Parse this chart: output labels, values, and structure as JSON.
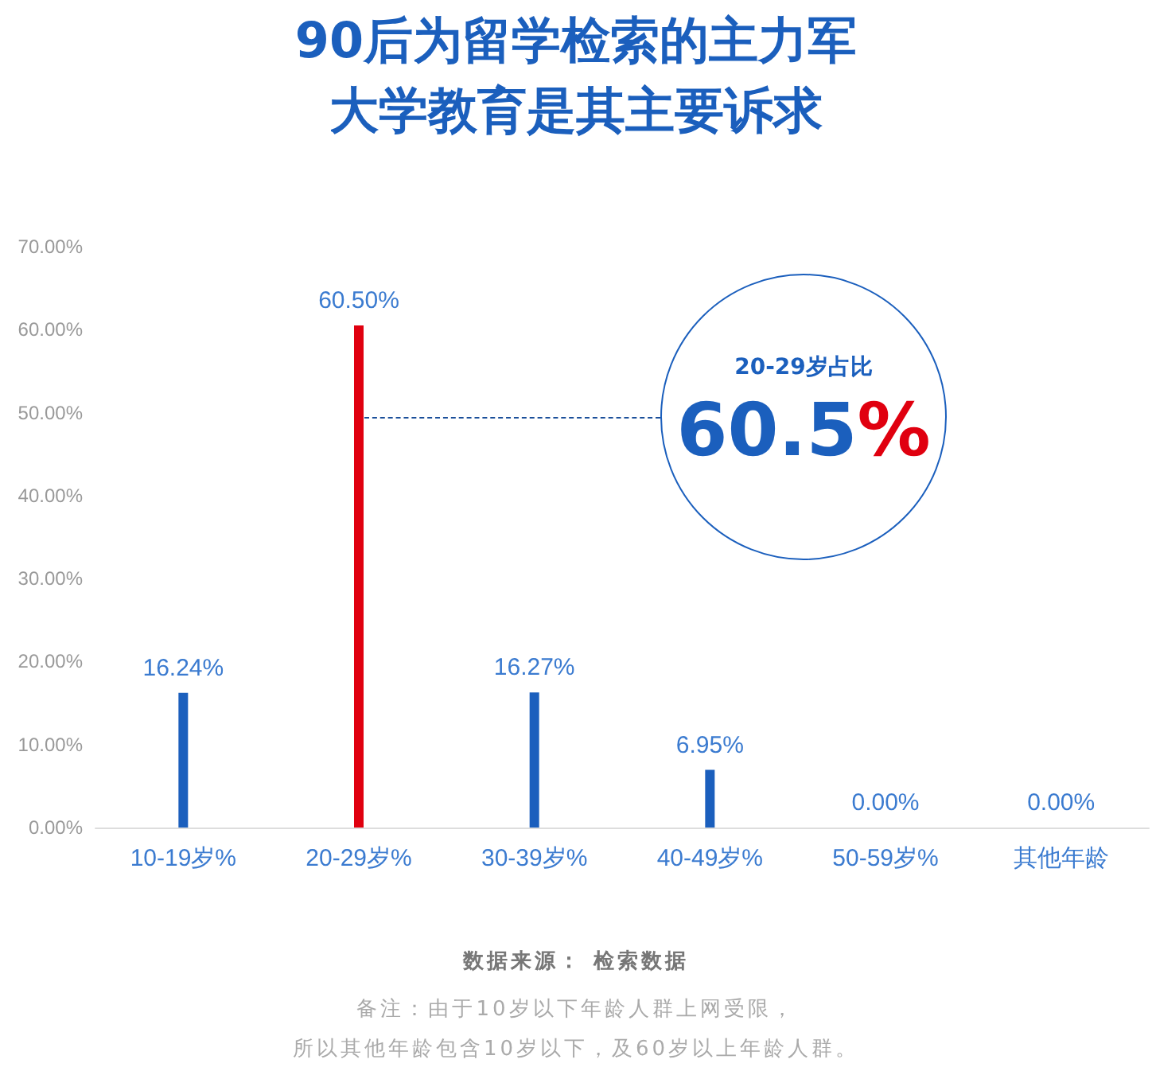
{
  "chart_data": {
    "type": "bar",
    "title": "90后为留学检索的主力军大学教育是其主要诉求",
    "categories": [
      "10-19岁%",
      "20-29岁%",
      "30-39岁%",
      "40-49岁%",
      "50-59岁%",
      "其他年龄"
    ],
    "values": [
      16.24,
      60.5,
      16.27,
      6.95,
      0,
      0
    ],
    "colors": [
      "#1b5fbd",
      "#e0000f",
      "#1b5fbd",
      "#1b5fbd",
      "#1b5fbd",
      "#1b5fbd"
    ],
    "value_labels": [
      "16.24%",
      "60.50%",
      "16.27%",
      "6.95%",
      "0.00%",
      "0.00%"
    ],
    "ylim": [
      0,
      70
    ],
    "yticks": [
      {
        "value": 0,
        "label": "0.00%"
      },
      {
        "value": 10,
        "label": "10.00%"
      },
      {
        "value": 20,
        "label": "20.00%"
      },
      {
        "value": 30,
        "label": "30.00%"
      },
      {
        "value": 40,
        "label": "40.00%"
      },
      {
        "value": 50,
        "label": "50.00%"
      },
      {
        "value": 60,
        "label": "60.00%"
      },
      {
        "value": 70,
        "label": "70.00%"
      }
    ],
    "grid": false,
    "annotations": [
      "20-29岁占比",
      {
        "text": "60.5%",
        "x": "20-29岁%",
        "y": 49.5
      },
      "数据来源： 检索数据",
      "备注：由于10岁以下年龄人群上网受限，",
      "所以其他年龄包含10岁以下，及60岁以上年龄人群。"
    ]
  }
}
